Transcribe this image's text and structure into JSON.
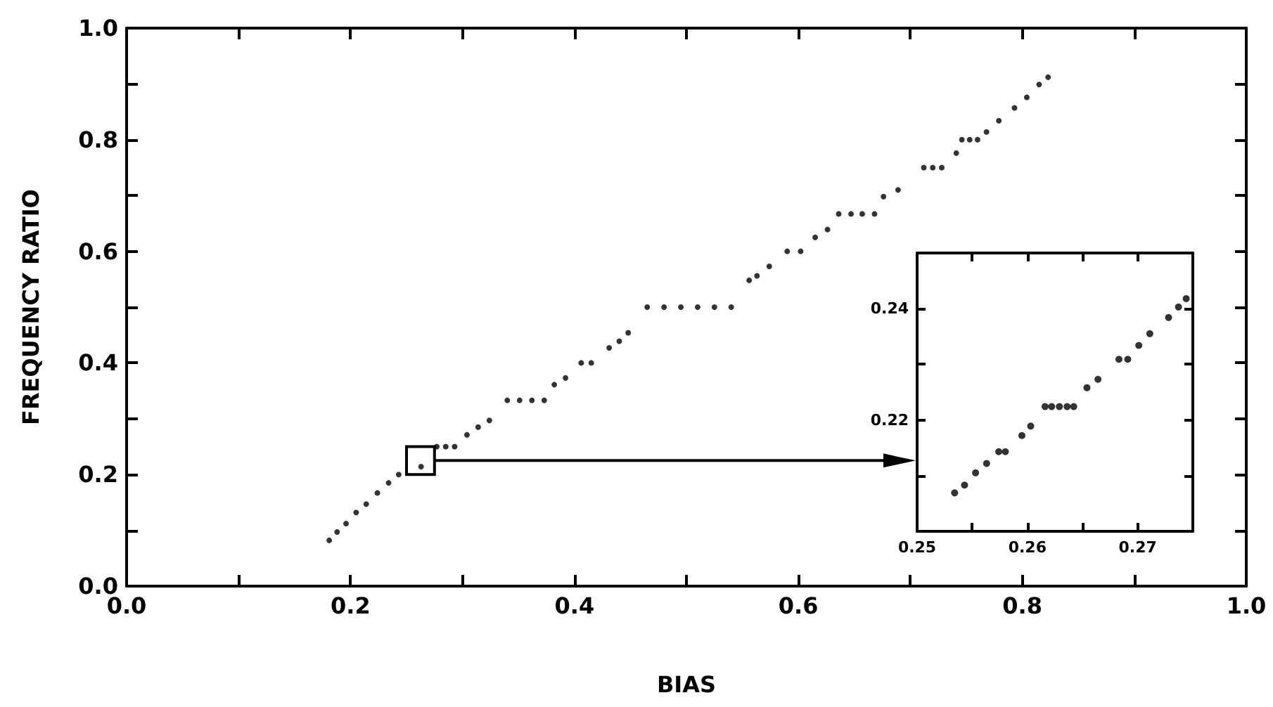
{
  "chart_data": [
    {
      "type": "scatter",
      "xlabel": "BIAS",
      "ylabel": "FREQUENCY RATIO",
      "color": "#000000",
      "marker": "circle",
      "x": [
        0.181,
        0.188,
        0.196,
        0.205,
        0.214,
        0.224,
        0.234,
        0.243,
        0.25,
        0.257,
        0.263,
        0.277,
        0.285,
        0.293,
        0.304,
        0.314,
        0.324,
        0.34,
        0.351,
        0.362,
        0.373,
        0.382,
        0.392,
        0.406,
        0.415,
        0.431,
        0.44,
        0.448,
        0.465,
        0.48,
        0.495,
        0.51,
        0.525,
        0.54,
        0.556,
        0.563,
        0.574,
        0.59,
        0.602,
        0.615,
        0.626,
        0.636,
        0.647,
        0.657,
        0.668,
        0.676,
        0.689,
        0.712,
        0.72,
        0.728,
        0.741,
        0.746,
        0.753,
        0.76,
        0.768,
        0.779,
        0.793,
        0.804,
        0.815,
        0.823
      ],
      "values": [
        0.082,
        0.097,
        0.112,
        0.132,
        0.147,
        0.167,
        0.185,
        0.2,
        null,
        null,
        0.214,
        0.25,
        0.25,
        0.25,
        0.271,
        0.285,
        0.297,
        0.333,
        0.333,
        0.333,
        0.333,
        0.361,
        0.373,
        0.4,
        0.4,
        0.427,
        0.439,
        0.454,
        0.5,
        0.5,
        0.5,
        0.5,
        0.5,
        0.5,
        0.548,
        0.556,
        0.573,
        0.6,
        0.6,
        0.625,
        0.639,
        0.667,
        0.667,
        0.667,
        0.667,
        0.698,
        0.71,
        0.75,
        0.75,
        0.75,
        0.776,
        0.8,
        0.8,
        0.8,
        0.814,
        0.834,
        0.857,
        0.876,
        0.899,
        0.912
      ],
      "xlim": [
        0,
        1
      ],
      "ylim": [
        0,
        1
      ],
      "xticks": [
        {
          "value": 0,
          "label": "0.0"
        },
        {
          "value": 0.1,
          "label": null
        },
        0.2,
        {
          "value": 0.3,
          "label": null
        },
        0.4,
        {
          "value": 0.5,
          "label": null
        },
        0.6,
        {
          "value": 0.7,
          "label": null
        },
        0.8,
        {
          "value": 0.9,
          "label": null
        },
        {
          "value": 1,
          "label": "1.0"
        }
      ],
      "yticks": [
        {
          "value": 0,
          "label": "0.0"
        },
        {
          "value": 0.1,
          "label": null
        },
        0.2,
        {
          "value": 0.3,
          "label": null
        },
        0.4,
        {
          "value": 0.5,
          "label": null
        },
        0.6,
        {
          "value": 0.7,
          "label": null
        },
        0.8,
        {
          "value": 0.9,
          "label": null
        },
        {
          "value": 1,
          "label": "1.0"
        }
      ]
    },
    {
      "type": "scatter",
      "color": "#000000",
      "marker": "circle",
      "x": [
        0.2534,
        0.2543,
        0.2553,
        0.2563,
        0.2574,
        0.258,
        0.2595,
        0.2603,
        0.2616,
        0.2622,
        0.2629,
        0.2636,
        0.2642,
        0.2654,
        0.2664,
        0.2683,
        0.2691,
        0.2701,
        0.2711,
        0.2728,
        0.2737,
        0.2744
      ],
      "values": [
        0.2069,
        0.2083,
        0.2105,
        0.2122,
        0.2143,
        0.2143,
        0.2172,
        0.2189,
        0.2224,
        0.2224,
        0.2224,
        0.2224,
        0.2224,
        0.2258,
        0.2273,
        0.2309,
        0.2309,
        0.2334,
        0.2355,
        0.2384,
        0.2403,
        0.2418
      ],
      "xlim": [
        0.25,
        0.275
      ],
      "ylim": [
        0.2,
        0.25
      ],
      "xticks": [
        0.25,
        {
          "value": 0.255,
          "label": null
        },
        0.26,
        {
          "value": 0.265,
          "label": null
        },
        0.27
      ],
      "yticks": [
        {
          "value": 0.21,
          "label": null
        },
        0.22,
        {
          "value": 0.23,
          "label": null
        },
        0.24
      ]
    }
  ]
}
